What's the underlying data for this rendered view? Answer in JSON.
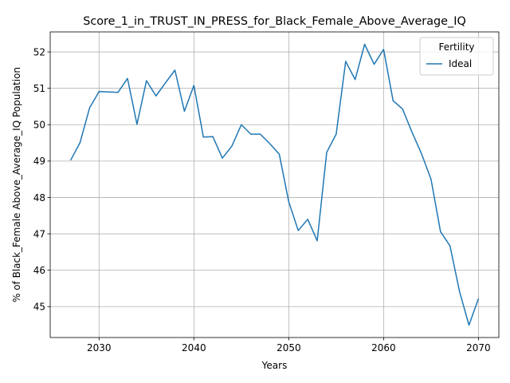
{
  "chart_data": {
    "type": "line",
    "title": "Score_1_in_TRUST_IN_PRESS_for_Black_Female_Above_Average_IQ",
    "xlabel": "Years",
    "ylabel": "% of Black_Female Above_Average_IQ Population",
    "xlim": [
      2024.85,
      2072.15
    ],
    "ylim": [
      44.15,
      52.55
    ],
    "xticks": [
      2030,
      2040,
      2050,
      2060,
      2070
    ],
    "yticks": [
      45,
      46,
      47,
      48,
      49,
      50,
      51,
      52
    ],
    "grid": true,
    "legend": {
      "title": "Fertility",
      "placement": "top-right"
    },
    "color": "#1f77b4",
    "series": [
      {
        "name": "Ideal",
        "x": [
          2027,
          2028,
          2029,
          2030,
          2031,
          2032,
          2033,
          2034,
          2035,
          2036,
          2037,
          2038,
          2039,
          2040,
          2041,
          2042,
          2043,
          2044,
          2045,
          2046,
          2047,
          2048,
          2049,
          2050,
          2051,
          2052,
          2053,
          2054,
          2055,
          2056,
          2057,
          2058,
          2059,
          2060,
          2061,
          2062,
          2063,
          2064,
          2065,
          2066,
          2067,
          2068,
          2069,
          2070
        ],
        "values": [
          49.02,
          49.51,
          50.46,
          50.91,
          50.9,
          50.89,
          51.27,
          50.01,
          51.21,
          50.79,
          51.15,
          51.5,
          50.37,
          51.08,
          49.66,
          49.67,
          49.08,
          49.41,
          50.0,
          49.74,
          49.74,
          49.48,
          49.19,
          47.88,
          47.09,
          47.4,
          46.81,
          49.24,
          49.74,
          51.74,
          51.24,
          52.21,
          51.66,
          52.07,
          50.66,
          50.43,
          49.79,
          49.2,
          48.5,
          47.06,
          46.67,
          45.42,
          44.49,
          45.22
        ]
      }
    ]
  }
}
